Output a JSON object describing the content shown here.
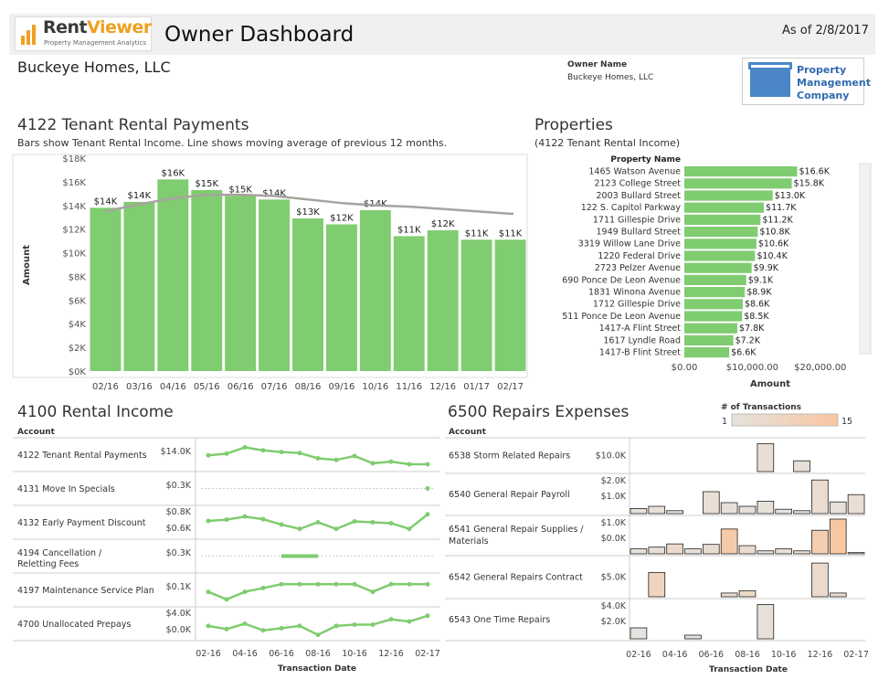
{
  "header": {
    "logo_text_main": "Rent",
    "logo_text_accent": "Viewer",
    "logo_subtitle": "Property Management Analytics",
    "title": "Owner Dashboard",
    "as_of": "As of 2/8/2017"
  },
  "owner": {
    "company_name": "Buckeye Homes, LLC",
    "label": "Owner Name",
    "value": "Buckeye Homes, LLC",
    "pm_logo_lines": [
      "Property",
      "Management",
      "Company"
    ]
  },
  "colors": {
    "bar_green": "#80cc70",
    "line_gray": "#a8a39f",
    "heat_low": "#e6e2dd",
    "heat_high": "#f8c6a0"
  },
  "chart_data": [
    {
      "type": "bar",
      "id": "tenant_rental_payments",
      "title": "4122 Tenant Rental Payments",
      "subtitle": "Bars show Tenant Rental Income. Line shows moving average of previous 12 months.",
      "ylabel": "Amount",
      "ylim": [
        0,
        18000
      ],
      "yticks": [
        "$0K",
        "$2K",
        "$4K",
        "$6K",
        "$8K",
        "$10K",
        "$12K",
        "$14K",
        "$16K",
        "$18K"
      ],
      "categories": [
        "02/16",
        "03/16",
        "04/16",
        "05/16",
        "06/16",
        "07/16",
        "08/16",
        "09/16",
        "10/16",
        "11/16",
        "12/16",
        "01/17",
        "02/17"
      ],
      "values": [
        13800,
        14300,
        16200,
        15300,
        14800,
        14500,
        12900,
        12400,
        13600,
        11400,
        11900,
        11100,
        11100
      ],
      "labels": [
        "$14K",
        "$14K",
        "$16K",
        "$15K",
        "$15K",
        "$14K",
        "$13K",
        "$12K",
        "$14K",
        "$11K",
        "$12K",
        "$11K",
        "$11K"
      ],
      "moving_average": [
        13500,
        14100,
        14600,
        14900,
        14900,
        14800,
        14500,
        14200,
        14000,
        13900,
        13700,
        13500,
        13300
      ]
    },
    {
      "type": "bar",
      "id": "properties",
      "orientation": "horizontal",
      "title": "Properties",
      "subtitle": "(4122 Tenant Rental Income)",
      "column_header": "Property Name",
      "xlabel": "Amount",
      "xlim": [
        0,
        25000
      ],
      "xticks": [
        "$0.00",
        "$10,000.00",
        "$20,000.00"
      ],
      "categories": [
        "1465 Watson Avenue",
        "2123 College Street",
        "2003 Bullard Street",
        "122 S. Capitol Parkway",
        "1711 Gillespie Drive",
        "1949 Bullard Street",
        "3319 Willow Lane Drive",
        "1220 Federal Drive",
        "2723 Pelzer Avenue",
        "690 Ponce De Leon Avenue",
        "1831 Winona Avenue",
        "1712 Gillespie Drive",
        "511 Ponce De Leon Avenue",
        "1417-A Flint Street",
        "1617 Lyndle Road",
        "1417-B Flint Street"
      ],
      "values": [
        16600,
        15800,
        13000,
        11700,
        11200,
        10800,
        10600,
        10400,
        9900,
        9100,
        8900,
        8600,
        8500,
        7800,
        7200,
        6600
      ],
      "labels": [
        "$16.6K",
        "$15.8K",
        "$13.0K",
        "$11.7K",
        "$11.2K",
        "$10.8K",
        "$10.6K",
        "$10.4K",
        "$9.9K",
        "$9.1K",
        "$8.9K",
        "$8.6K",
        "$8.5K",
        "$7.8K",
        "$7.2K",
        "$6.6K"
      ]
    },
    {
      "type": "line",
      "id": "rental_income",
      "title": "4100 Rental Income",
      "row_header": "Account",
      "xlabel": "Transaction Date",
      "xticks": [
        "02-16",
        "04-16",
        "06-16",
        "08-16",
        "10-16",
        "12-16",
        "02-17"
      ],
      "series": [
        {
          "name": "4122 Tenant Rental Payments",
          "yticks": [
            "$14.0K"
          ],
          "ylim": [
            10000,
            18000
          ],
          "values": [
            13800,
            14300,
            16200,
            15300,
            14800,
            14500,
            12900,
            12400,
            13600,
            11400,
            11900,
            11100,
            11100
          ]
        },
        {
          "name": "4131 Move In Specials",
          "yticks": [
            "$0.3K"
          ],
          "ylim": [
            0,
            600
          ],
          "values": [
            null,
            null,
            null,
            null,
            null,
            null,
            null,
            null,
            null,
            null,
            null,
            null,
            300
          ]
        },
        {
          "name": "4132 Early Payment Discount",
          "yticks": [
            "$0.8K",
            "$0.6K"
          ],
          "ylim": [
            400,
            1000
          ],
          "values": [
            730,
            760,
            830,
            770,
            650,
            550,
            700,
            550,
            720,
            700,
            680,
            550,
            880
          ]
        },
        {
          "name": "4194 Cancellation / Reletting Fees",
          "yticks": [
            "$0.3K"
          ],
          "ylim": [
            0,
            600
          ],
          "values": [
            null,
            null,
            null,
            null,
            300,
            300,
            300,
            null,
            null,
            null,
            null,
            null,
            null
          ]
        },
        {
          "name": "4197 Maintenance Service Plan",
          "yticks": [
            "$0.1K"
          ],
          "ylim": [
            0,
            140
          ],
          "values": [
            60,
            20,
            60,
            80,
            100,
            100,
            100,
            100,
            100,
            60,
            100,
            100,
            100
          ]
        },
        {
          "name": "4700 Unallocated Prepays",
          "yticks": [
            "$4.0K",
            "$0.0K"
          ],
          "ylim": [
            -1000,
            5000
          ],
          "values": [
            1500,
            800,
            2000,
            500,
            1000,
            1500,
            -500,
            1500,
            1800,
            1800,
            3000,
            2500,
            3800
          ]
        }
      ]
    },
    {
      "type": "bar",
      "id": "repairs_expenses",
      "title": "6500 Repairs Expenses",
      "row_header": "Account",
      "xlabel": "Transaction Date",
      "xticks": [
        "02-16",
        "04-16",
        "06-16",
        "08-16",
        "10-16",
        "12-16",
        "02-17"
      ],
      "color_legend": {
        "title": "# of Transactions",
        "min": "1",
        "max": "15"
      },
      "series": [
        {
          "name": "6538 Storm Related Repairs",
          "yticks": [
            "$10.0K"
          ],
          "ylim": [
            0,
            14000
          ],
          "values": [
            0,
            0,
            0,
            0,
            0,
            0,
            0,
            13000,
            0,
            5000,
            0,
            0,
            0
          ],
          "counts": [
            0,
            0,
            0,
            0,
            0,
            0,
            0,
            3,
            0,
            2,
            0,
            0,
            0
          ]
        },
        {
          "name": "6540 General Repair Payroll",
          "yticks": [
            "$2.0K",
            "$1.0K"
          ],
          "ylim": [
            0,
            2500
          ],
          "values": [
            350,
            500,
            200,
            0,
            1500,
            750,
            500,
            850,
            300,
            200,
            2300,
            800,
            1300
          ],
          "counts": [
            2,
            2,
            1,
            0,
            3,
            2,
            2,
            2,
            1,
            1,
            4,
            2,
            3
          ]
        },
        {
          "name": "6541 General Repair Supplies / Materials",
          "yticks": [
            "$1.0K",
            "$0.0K"
          ],
          "ylim": [
            0,
            1400
          ],
          "values": [
            200,
            270,
            400,
            200,
            380,
            1000,
            330,
            120,
            200,
            120,
            950,
            1400,
            50
          ],
          "counts": [
            2,
            3,
            5,
            2,
            4,
            13,
            4,
            2,
            3,
            2,
            11,
            15,
            1
          ]
        },
        {
          "name": "6542 General Repairs Contract",
          "yticks": [
            "$5.0K"
          ],
          "ylim": [
            0,
            8000
          ],
          "values": [
            0,
            5200,
            0,
            0,
            0,
            800,
            1300,
            0,
            0,
            0,
            7200,
            800,
            0
          ],
          "counts": [
            0,
            8,
            0,
            0,
            0,
            4,
            6,
            0,
            0,
            0,
            5,
            4,
            0
          ]
        },
        {
          "name": "6543 One Time Repairs",
          "yticks": [
            "$4.0K",
            "$2.0K"
          ],
          "ylim": [
            0,
            5000
          ],
          "values": [
            1500,
            0,
            0,
            500,
            0,
            0,
            0,
            4700,
            0,
            0,
            0,
            0,
            0
          ],
          "counts": [
            1,
            0,
            0,
            1,
            0,
            0,
            0,
            2,
            0,
            0,
            0,
            0,
            0
          ]
        }
      ]
    }
  ]
}
